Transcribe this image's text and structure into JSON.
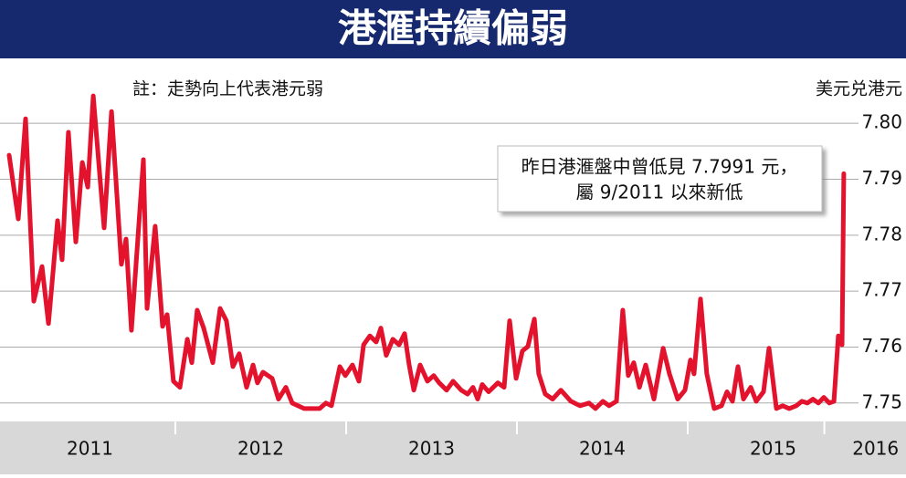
{
  "chart_data": {
    "type": "line",
    "title": "港滙持續偏弱",
    "note": "註：走勢向上代表港元弱",
    "y_label": "美元兑港元",
    "annotation": [
      "昨日港滙盤中曾低見 7.7991 元，",
      "屬 9/2011 以來新低"
    ],
    "color": "#e3122d",
    "grid": true,
    "ylim": [
      7.7467,
      7.809
    ],
    "yticks": [
      {
        "value": 7.8,
        "label": "7.80"
      },
      7.79,
      7.78,
      7.77,
      7.76,
      7.75
    ],
    "xlim": [
      2011,
      2016.28
    ],
    "xticks": [
      {
        "value": 2011.5,
        "label": "2011"
      },
      {
        "value": 2012.5,
        "label": "2012"
      },
      {
        "value": 2013.5,
        "label": "2013"
      },
      {
        "value": 2014.5,
        "label": "2014"
      },
      {
        "value": 2015.5,
        "label": "2015"
      },
      {
        "value": 2016.1,
        "label": "2016"
      }
    ],
    "x": [
      2011.027,
      2011.08,
      2011.123,
      2011.171,
      2011.219,
      2011.257,
      2011.31,
      2011.337,
      2011.374,
      2011.417,
      2011.455,
      2011.487,
      2011.519,
      2011.583,
      2011.626,
      2011.684,
      2011.711,
      2011.743,
      2011.813,
      2011.834,
      2011.882,
      2011.925,
      2011.952,
      2011.989,
      2012.027,
      2012.07,
      2012.096,
      2012.128,
      2012.166,
      2012.219,
      2012.262,
      2012.299,
      2012.337,
      2012.374,
      2012.417,
      2012.455,
      2012.481,
      2012.513,
      2012.567,
      2012.604,
      2012.647,
      2012.684,
      2012.754,
      2012.791,
      2012.845,
      2012.882,
      2012.914,
      2012.963,
      2012.995,
      2013.037,
      2013.075,
      2013.102,
      2013.139,
      2013.176,
      2013.203,
      2013.235,
      2013.273,
      2013.31,
      2013.342,
      2013.369,
      2013.396,
      2013.433,
      2013.476,
      2013.513,
      2013.545,
      2013.588,
      2013.626,
      2013.674,
      2013.711,
      2013.743,
      2013.77,
      2013.797,
      2013.834,
      2013.888,
      2013.925,
      2013.957,
      2013.995,
      2014.032,
      2014.064,
      2014.102,
      2014.128,
      2014.166,
      2014.209,
      2014.257,
      2014.316,
      2014.369,
      2014.422,
      2014.46,
      2014.503,
      2014.54,
      2014.583,
      2014.62,
      2014.652,
      2014.684,
      2014.717,
      2014.754,
      2014.802,
      2014.856,
      2014.893,
      2014.941,
      2014.984,
      2015.016,
      2015.037,
      2015.075,
      2015.112,
      2015.155,
      2015.198,
      2015.23,
      2015.262,
      2015.294,
      2015.326,
      2015.369,
      2015.401,
      2015.444,
      2015.476,
      2015.519,
      2015.556,
      2015.594,
      2015.636,
      2015.668,
      2015.701,
      2015.733,
      2015.765,
      2015.797,
      2015.829,
      2015.856,
      2015.882,
      2015.904,
      2015.914
    ],
    "values": [
      7.7943,
      7.7829,
      7.8008,
      7.7682,
      7.7744,
      7.7642,
      7.7826,
      7.7756,
      7.7984,
      7.7788,
      7.793,
      7.7886,
      7.8049,
      7.7813,
      7.8021,
      7.7748,
      7.7793,
      7.763,
      7.7935,
      7.7669,
      7.7816,
      7.7637,
      7.7658,
      7.7539,
      7.7528,
      7.7614,
      7.7572,
      7.7666,
      7.7634,
      7.7572,
      7.7669,
      7.7647,
      7.7565,
      7.7588,
      7.7528,
      7.7568,
      7.7536,
      7.7555,
      7.7544,
      7.7507,
      7.7528,
      7.75,
      7.749,
      7.749,
      7.749,
      7.75,
      7.7495,
      7.7565,
      7.7549,
      7.7568,
      7.7539,
      7.7604,
      7.762,
      7.7609,
      7.7634,
      7.7585,
      7.7614,
      7.7604,
      7.7624,
      7.7568,
      7.7523,
      7.7568,
      7.7539,
      7.7549,
      7.7536,
      7.7523,
      7.7539,
      7.7523,
      7.7516,
      7.7528,
      7.7507,
      7.7533,
      7.752,
      7.7536,
      7.7528,
      7.7647,
      7.7544,
      7.7593,
      7.7601,
      7.765,
      7.7552,
      7.7516,
      7.7507,
      7.7523,
      7.7503,
      7.7495,
      7.75,
      7.749,
      7.7503,
      7.7495,
      7.7503,
      7.7666,
      7.7549,
      7.7572,
      7.7528,
      7.7568,
      7.7507,
      7.7598,
      7.7552,
      7.7507,
      7.7523,
      7.7577,
      7.7552,
      7.7686,
      7.7552,
      7.749,
      7.7495,
      7.752,
      7.7503,
      7.7565,
      7.7507,
      7.7528,
      7.7503,
      7.752,
      7.7598,
      7.749,
      7.7495,
      7.749,
      7.7495,
      7.7503,
      7.75,
      7.7507,
      7.75,
      7.751,
      7.75,
      7.7503,
      7.762,
      7.7604,
      7.791
    ]
  }
}
